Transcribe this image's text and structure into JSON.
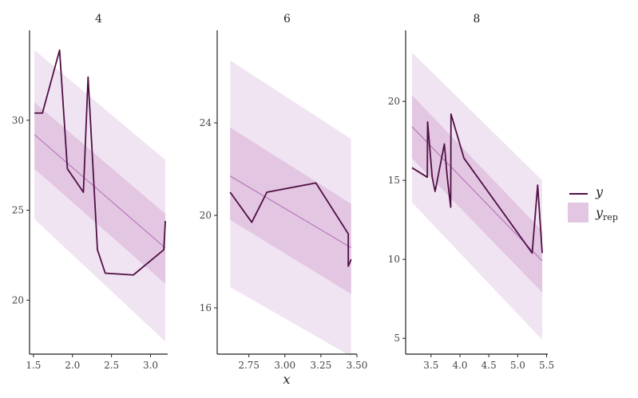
{
  "colors": {
    "outer_band": "#f1e4f2",
    "inner_band": "#e3c7e2",
    "median_line": "#b778bd",
    "observed_line": "#4f0f45",
    "axis": "#222222"
  },
  "legend": {
    "y_label": "y",
    "yrep_label": "y",
    "yrep_sub": "rep",
    "placement": "right"
  },
  "xlabel": "x",
  "chart_data": [
    {
      "type": "line",
      "title": "4",
      "xlim": [
        1.45,
        3.22
      ],
      "ylim": [
        17.0,
        35.0
      ],
      "xticks": [
        1.5,
        2.0,
        2.5,
        3.0
      ],
      "xtick_labels": [
        "1.5",
        "2.0",
        "2.5",
        "3.0"
      ],
      "yticks": [
        20,
        25,
        30
      ],
      "ytick_labels": [
        "20",
        "25",
        "30"
      ],
      "band_x": [
        1.513,
        3.19
      ],
      "band_outer_low": [
        24.5,
        17.7
      ],
      "band_outer_high": [
        33.9,
        27.8
      ],
      "band_inner_low": [
        27.3,
        20.9
      ],
      "band_inner_high": [
        31.0,
        24.8
      ],
      "median": [
        29.2,
        22.9
      ],
      "series": [
        {
          "name": "y",
          "x": [
            1.513,
            1.615,
            1.835,
            1.935,
            2.14,
            2.2,
            2.32,
            2.42,
            2.78,
            3.17,
            3.19
          ],
          "values": [
            30.4,
            30.4,
            33.9,
            27.3,
            26.0,
            32.4,
            22.8,
            21.5,
            21.4,
            22.8,
            24.4
          ]
        }
      ]
    },
    {
      "type": "line",
      "title": "6",
      "xlim": [
        2.53,
        3.5
      ],
      "ylim": [
        14.0,
        28.0
      ],
      "xticks": [
        2.75,
        3.0,
        3.25,
        3.5
      ],
      "xtick_labels": [
        "2.75",
        "3.00",
        "3.25",
        "3.50"
      ],
      "yticks": [
        16,
        20,
        24
      ],
      "ytick_labels": [
        "16",
        "20",
        "24"
      ],
      "band_x": [
        2.62,
        3.46
      ],
      "band_outer_low": [
        16.9,
        13.9
      ],
      "band_outer_high": [
        26.7,
        23.3
      ],
      "band_inner_low": [
        19.8,
        16.6
      ],
      "band_inner_high": [
        23.8,
        20.5
      ],
      "median": [
        21.7,
        18.6
      ],
      "series": [
        {
          "name": "y",
          "x": [
            2.62,
            2.77,
            2.875,
            3.215,
            3.44,
            3.44,
            3.46
          ],
          "values": [
            21.0,
            19.7,
            21.0,
            21.4,
            19.2,
            17.8,
            18.1
          ]
        }
      ]
    },
    {
      "type": "line",
      "title": "8",
      "xlim": [
        3.06,
        5.52
      ],
      "ylim": [
        4.0,
        24.5
      ],
      "xticks": [
        3.5,
        4.0,
        4.5,
        5.0,
        5.5
      ],
      "xtick_labels": [
        "3.5",
        "4.0",
        "4.5",
        "5.0",
        "5.5"
      ],
      "yticks": [
        5,
        10,
        15,
        20
      ],
      "ytick_labels": [
        "5",
        "10",
        "15",
        "20"
      ],
      "band_x": [
        3.17,
        5.424
      ],
      "band_outer_low": [
        13.6,
        4.9
      ],
      "band_outer_high": [
        23.1,
        15.0
      ],
      "band_inner_low": [
        16.4,
        7.9
      ],
      "band_inner_high": [
        20.4,
        11.8
      ],
      "median": [
        18.4,
        9.9
      ],
      "series": [
        {
          "name": "y",
          "x": [
            3.17,
            3.435,
            3.44,
            3.52,
            3.57,
            3.73,
            3.78,
            3.84,
            3.845,
            4.07,
            5.25,
            5.345,
            5.424
          ],
          "values": [
            15.8,
            15.2,
            18.7,
            15.2,
            14.3,
            17.3,
            15.2,
            13.3,
            19.2,
            16.4,
            10.4,
            14.7,
            10.4
          ]
        }
      ]
    }
  ]
}
